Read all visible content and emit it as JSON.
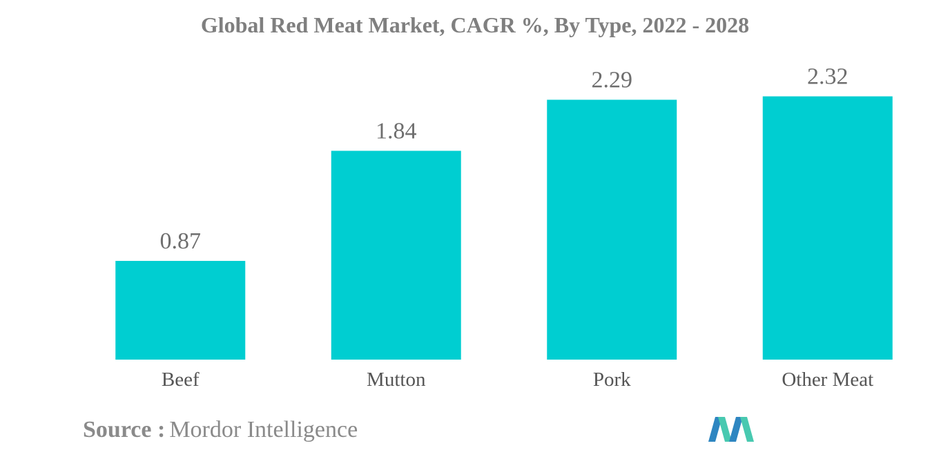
{
  "chart_data": {
    "type": "bar",
    "title": "Global Red Meat Market, CAGR %, By Type, 2022 - 2028",
    "categories": [
      "Beef",
      "Mutton",
      "Pork",
      "Other Meat"
    ],
    "values": [
      0.87,
      1.84,
      2.29,
      2.32
    ],
    "value_labels": [
      "0.87",
      "1.84",
      "2.29",
      "2.32"
    ],
    "xlabel": "",
    "ylabel": "",
    "ylim": [
      0,
      2.5
    ],
    "grid": false,
    "legend": "none",
    "bar_color": "#00ced1"
  },
  "source": {
    "label": "Source :",
    "value": "Mordor Intelligence"
  },
  "logo": {
    "icon": "mordor-intelligence-logo-icon",
    "colors": [
      "#2e86c1",
      "#48c9b0"
    ]
  }
}
